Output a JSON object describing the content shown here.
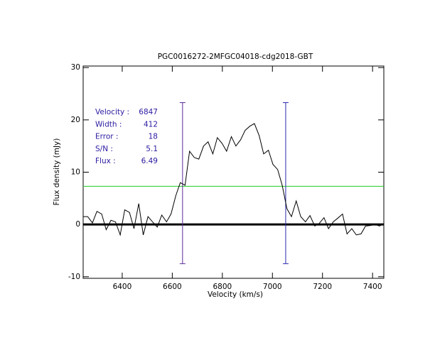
{
  "chart_data": {
    "type": "line",
    "title": "PGC0016272-2MFGC04018-cdg2018-GBT",
    "xlabel": "Velocity (km/s)",
    "ylabel": "Flux density (mJy)",
    "xlim": [
      6244,
      7445
    ],
    "ylim": [
      -10.3,
      30.3
    ],
    "xticks": [
      6400,
      6600,
      6800,
      7000,
      7200,
      7400
    ],
    "yticks": [
      -10,
      0,
      10,
      20,
      30
    ],
    "x": [
      6244,
      6262,
      6281,
      6299,
      6318,
      6336,
      6355,
      6373,
      6392,
      6410,
      6429,
      6447,
      6466,
      6484,
      6503,
      6521,
      6540,
      6558,
      6577,
      6595,
      6614,
      6632,
      6651,
      6669,
      6688,
      6706,
      6725,
      6743,
      6762,
      6780,
      6799,
      6817,
      6836,
      6854,
      6873,
      6891,
      6910,
      6928,
      6947,
      6965,
      6984,
      7002,
      7021,
      7039,
      7058,
      7076,
      7095,
      7113,
      7132,
      7150,
      7169,
      7187,
      7206,
      7224,
      7243,
      7261,
      7280,
      7298,
      7317,
      7335,
      7354,
      7372,
      7391,
      7409,
      7428,
      7445
    ],
    "series": [
      {
        "color": "#000000",
        "values": [
          1.5,
          1.5,
          0.3,
          2.5,
          2,
          -1,
          0.8,
          0.5,
          -2,
          2.8,
          2.3,
          -0.8,
          4,
          -2,
          1.5,
          0.5,
          -0.5,
          1.8,
          0.5,
          2,
          5.5,
          8,
          7.5,
          14,
          12.8,
          12.5,
          15,
          15.8,
          13.5,
          16.6,
          15.5,
          14,
          16.8,
          15,
          16.2,
          18,
          18.8,
          19.3,
          17,
          13.5,
          14.2,
          11.5,
          10.5,
          7.5,
          3,
          1.5,
          4.5,
          1.5,
          0.5,
          1.7,
          -0.3,
          0.2,
          1.3,
          -0.8,
          0.5,
          1.2,
          2,
          -1.8,
          -0.8,
          -2,
          -1.8,
          -0.3,
          -0.2,
          0,
          -0.3,
          0.2
        ]
      }
    ],
    "threshold": {
      "value": 7.3,
      "color": "#22cc22"
    },
    "markers": [
      {
        "x": 6641,
        "y": [
          -7.5,
          23.3
        ],
        "color": "#5a2a9a"
      },
      {
        "x": 7053,
        "y": [
          -7.5,
          23.3
        ],
        "color": "#2a2ab0"
      }
    ],
    "annotations": [
      {
        "label": "Velocity :",
        "value": 6847
      },
      {
        "label": "Width :",
        "value": 412
      },
      {
        "label": "Error :",
        "value": 18
      },
      {
        "label": "S/N :",
        "value": 5.1
      },
      {
        "label": "Flux :",
        "value": 6.49
      }
    ]
  }
}
